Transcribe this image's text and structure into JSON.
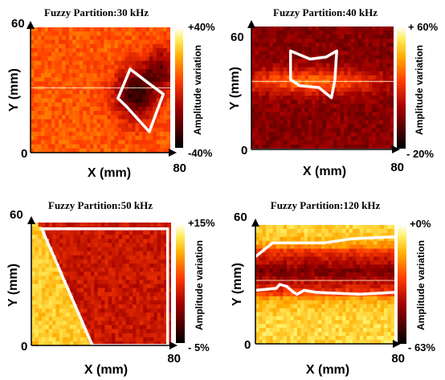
{
  "chart_data": [
    {
      "type": "heatmap",
      "title": "Fuzzy Partition:30 kHz",
      "xlabel": "X (mm)",
      "ylabel": "Y (mm)",
      "x_ticks": [
        "0",
        "80"
      ],
      "y_ticks": [
        "0",
        "60"
      ],
      "xlim": [
        0,
        80
      ],
      "ylim": [
        0,
        60
      ],
      "colorbar": {
        "label": "Amplitude variation",
        "max": "+40%",
        "min": "-40%",
        "max_value": 40,
        "min_value": -40
      },
      "colormap": "hot",
      "base_level": 0.6,
      "dark_blobs": [
        {
          "x": 60,
          "y": 28,
          "r": 12,
          "depth": 0.5
        },
        {
          "x": 75,
          "y": 40,
          "r": 10,
          "depth": 0.35
        }
      ],
      "scan_line_y": 31,
      "region_outline": [
        [
          57,
          40
        ],
        [
          50,
          26
        ],
        [
          55,
          22
        ],
        [
          68,
          10
        ],
        [
          76,
          28
        ],
        [
          68,
          33
        ]
      ]
    },
    {
      "type": "heatmap",
      "title": "Fuzzy Partition:40 kHz",
      "xlabel": "X (mm)",
      "ylabel": "Y (mm)",
      "x_ticks": [
        "0",
        "80"
      ],
      "y_ticks": [
        "0",
        "60"
      ],
      "xlim": [
        0,
        80
      ],
      "ylim": [
        0,
        60
      ],
      "colorbar": {
        "label": "Amplitude variation",
        "max": "+ 60%",
        "min": "- 20%",
        "max_value": 60,
        "min_value": -20
      },
      "colormap": "hot",
      "base_level": 0.28,
      "bright_bands": [
        {
          "x": 32,
          "y": 33,
          "w": 60,
          "h": 12,
          "gain": 0.35
        }
      ],
      "scan_line_y": 33,
      "region_outline": [
        [
          22,
          48
        ],
        [
          33,
          44
        ],
        [
          42,
          45
        ],
        [
          48,
          48
        ],
        [
          47,
          34
        ],
        [
          45,
          25
        ],
        [
          38,
          30
        ],
        [
          27,
          31
        ],
        [
          22,
          34
        ]
      ]
    },
    {
      "type": "heatmap",
      "title": "Fuzzy Partition:50 kHz",
      "xlabel": "X (mm)",
      "ylabel": "Y (mm)",
      "x_ticks": [
        "0",
        "80"
      ],
      "y_ticks": [
        "0",
        "60"
      ],
      "xlim": [
        0,
        80
      ],
      "ylim": [
        0,
        60
      ],
      "colorbar": {
        "label": "Amplitude variation",
        "max": "+15%",
        "min": "- 5%",
        "max_value": 15,
        "min_value": -5
      },
      "colormap": "hot",
      "left_triangle_level": 0.82,
      "right_region_level": 0.42,
      "region_outline": [
        [
          6,
          57
        ],
        [
          78,
          57
        ],
        [
          78,
          0
        ],
        [
          35,
          0
        ]
      ]
    },
    {
      "type": "heatmap",
      "title": "Fuzzy Partition:120 kHz",
      "xlabel": "X (mm)",
      "ylabel": "Y (mm)",
      "x_ticks": [
        "0",
        "80"
      ],
      "y_ticks": [
        "0",
        "60"
      ],
      "xlim": [
        0,
        80
      ],
      "ylim": [
        0,
        60
      ],
      "colorbar": {
        "label": "Amplitude variation",
        "max": "+0%",
        "min": "- 63%",
        "max_value": 0,
        "min_value": -63
      },
      "colormap": "hot",
      "band_y_range": [
        25,
        48
      ],
      "band_center_level": 0.25,
      "outside_level": 0.85,
      "scan_line_y": 32,
      "boundary_upper": [
        [
          0,
          44
        ],
        [
          10,
          51
        ],
        [
          40,
          51
        ],
        [
          48,
          52
        ],
        [
          55,
          53
        ],
        [
          80,
          54
        ]
      ],
      "boundary_lower": [
        [
          0,
          27
        ],
        [
          12,
          28
        ],
        [
          14,
          30
        ],
        [
          18,
          29
        ],
        [
          22,
          26
        ],
        [
          24,
          25
        ],
        [
          28,
          27
        ],
        [
          35,
          26
        ],
        [
          60,
          25
        ],
        [
          80,
          26
        ]
      ]
    }
  ]
}
